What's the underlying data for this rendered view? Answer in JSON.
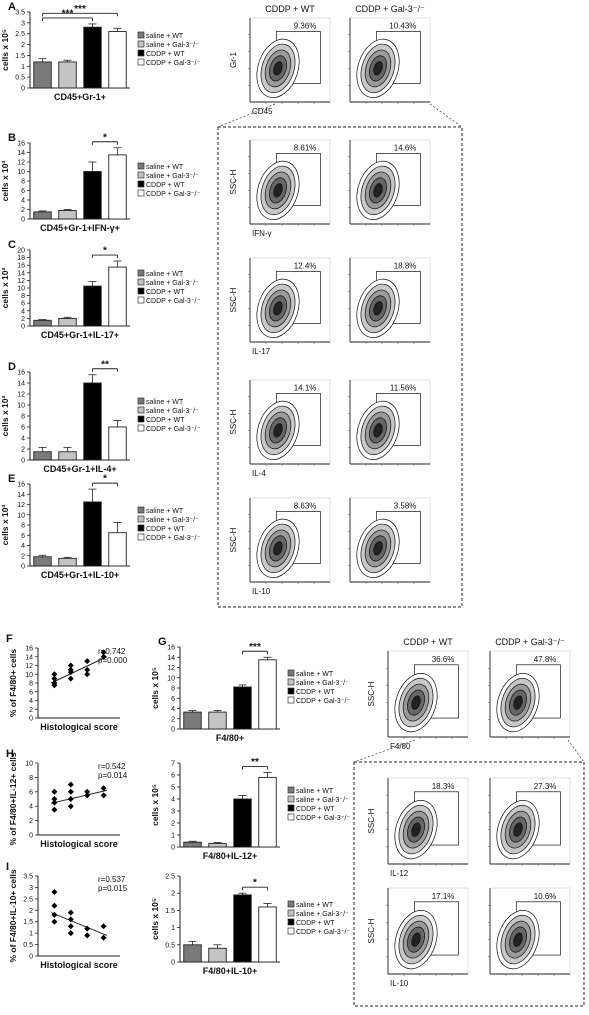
{
  "legend_labels": [
    "saline + WT",
    "saline + Gal-3⁻/⁻",
    "CDDP + WT",
    "CDDP + Gal-3⁻/⁻"
  ],
  "legend_colors": [
    "#7a7a7a",
    "#c4c4c4",
    "#000000",
    "#ffffff"
  ],
  "bar_panels": [
    {
      "letter": "A",
      "xlabel": "CD45+Gr-1+",
      "ylabel": "cells x 10⁵",
      "yticks": [
        "0",
        "0.5",
        "1",
        "1.5",
        "2",
        "2.5",
        "3",
        "3.5"
      ],
      "ylim": [
        0,
        3.5
      ],
      "values": [
        1.2,
        1.2,
        2.8,
        2.6
      ],
      "errors": [
        0.15,
        0.08,
        0.15,
        0.15
      ],
      "sig": [
        {
          "from": 0,
          "to": 2,
          "label": "***"
        },
        {
          "from": 0,
          "to": 3,
          "label": "***"
        }
      ]
    },
    {
      "letter": "B",
      "xlabel": "CD45+Gr-1+IFN-γ+",
      "ylabel": "cells x 10³",
      "yticks": [
        "0",
        "2",
        "4",
        "6",
        "8",
        "10",
        "12",
        "14",
        "16"
      ],
      "ylim": [
        0,
        16
      ],
      "values": [
        1.5,
        1.8,
        10,
        13.5
      ],
      "errors": [
        0.2,
        0.2,
        2,
        1.5
      ],
      "sig": [
        {
          "from": 2,
          "to": 3,
          "label": "*"
        }
      ]
    },
    {
      "letter": "C",
      "xlabel": "CD45+Gr-1+IL-17+",
      "ylabel": "cells x 10³",
      "yticks": [
        "0",
        "2",
        "4",
        "6",
        "8",
        "10",
        "12",
        "14",
        "16",
        "18",
        "20"
      ],
      "ylim": [
        0,
        20
      ],
      "values": [
        1.5,
        2,
        10.5,
        15.5
      ],
      "errors": [
        0.2,
        0.3,
        1.2,
        1.6
      ],
      "sig": [
        {
          "from": 2,
          "to": 3,
          "label": "*"
        }
      ]
    },
    {
      "letter": "D",
      "xlabel": "CD45+Gr-1+IL-4+",
      "ylabel": "cells x 10³",
      "yticks": [
        "0",
        "2",
        "4",
        "6",
        "8",
        "10",
        "12",
        "14",
        "16"
      ],
      "ylim": [
        0,
        16
      ],
      "values": [
        1.5,
        1.5,
        14,
        6
      ],
      "errors": [
        0.8,
        0.8,
        1.5,
        1.2
      ],
      "sig": [
        {
          "from": 2,
          "to": 3,
          "label": "**"
        }
      ]
    },
    {
      "letter": "E",
      "xlabel": "CD45+Gr-1+IL-10+",
      "ylabel": "cells x 10³",
      "yticks": [
        "0",
        "2",
        "4",
        "6",
        "8",
        "10",
        "12",
        "14",
        "16"
      ],
      "ylim": [
        0,
        16
      ],
      "values": [
        1.8,
        1.5,
        12.5,
        6.5
      ],
      "errors": [
        0.3,
        0.2,
        2.5,
        2
      ],
      "sig": [
        {
          "from": 2,
          "to": 3,
          "label": "*"
        }
      ]
    },
    {
      "letter": "G",
      "xlabel": "F4/80+",
      "ylabel": "cells x 10⁵",
      "yticks": [
        "0",
        "2",
        "4",
        "6",
        "8",
        "10",
        "12",
        "14",
        "16"
      ],
      "ylim": [
        0,
        16
      ],
      "values": [
        3.3,
        3.3,
        8.2,
        13.5
      ],
      "errors": [
        0.3,
        0.3,
        0.4,
        0.5
      ],
      "sig": [
        {
          "from": 2,
          "to": 3,
          "label": "***"
        }
      ]
    },
    {
      "letter": "",
      "xlabel": "F4/80+IL-12+",
      "ylabel": "cells x 10⁵",
      "yticks": [
        "0",
        "1",
        "2",
        "3",
        "4",
        "5",
        "6",
        "7"
      ],
      "ylim": [
        0,
        7
      ],
      "values": [
        0.4,
        0.3,
        4,
        5.8
      ],
      "errors": [
        0.08,
        0.08,
        0.3,
        0.4
      ],
      "sig": [
        {
          "from": 2,
          "to": 3,
          "label": "**"
        }
      ]
    },
    {
      "letter": "",
      "xlabel": "F4/80+IL-10+",
      "ylabel": "cells x 10⁵",
      "yticks": [
        "0",
        "0.5",
        "1",
        "1.5",
        "2",
        "2.5"
      ],
      "ylim": [
        0,
        2.5
      ],
      "values": [
        0.5,
        0.4,
        1.95,
        1.6
      ],
      "errors": [
        0.1,
        0.1,
        0.05,
        0.1
      ],
      "sig": [
        {
          "from": 2,
          "to": 3,
          "label": "*"
        }
      ]
    }
  ],
  "scatter_panels": [
    {
      "letter": "F",
      "ylabel": "% of F4/80+ cells",
      "xlabel": "Histological score",
      "yticks": [
        "0",
        "2",
        "4",
        "6",
        "8",
        "10",
        "12",
        "14",
        "16"
      ],
      "ylim": [
        0,
        16
      ],
      "r": "r=0.742",
      "p": "p=0.000",
      "points": [
        [
          1,
          7.5
        ],
        [
          1,
          9
        ],
        [
          1,
          10
        ],
        [
          1,
          8
        ],
        [
          2,
          10.5
        ],
        [
          2,
          12
        ],
        [
          2,
          11
        ],
        [
          2,
          9
        ],
        [
          3,
          11
        ],
        [
          3,
          13
        ],
        [
          3,
          10
        ],
        [
          4,
          14
        ],
        [
          4,
          15
        ]
      ],
      "fit": [
        [
          0.8,
          8
        ],
        [
          4.2,
          14
        ]
      ]
    },
    {
      "letter": "H",
      "ylabel": "% of F4/80+IL-12+ cells",
      "xlabel": "Histological score",
      "yticks": [
        "0",
        "2",
        "4",
        "6",
        "8",
        "10"
      ],
      "ylim": [
        0,
        10
      ],
      "r": "r=0.542",
      "p": "p=0.014",
      "points": [
        [
          1,
          4.5
        ],
        [
          1,
          3.5
        ],
        [
          1,
          5
        ],
        [
          1,
          6
        ],
        [
          2,
          5
        ],
        [
          2,
          4
        ],
        [
          2,
          6
        ],
        [
          2,
          7
        ],
        [
          3,
          5.5
        ],
        [
          3,
          6
        ],
        [
          4,
          5.5
        ],
        [
          4,
          6.5
        ]
      ],
      "fit": [
        [
          0.8,
          4.4
        ],
        [
          4.2,
          6.2
        ]
      ]
    },
    {
      "letter": "I",
      "ylabel": "% of F4/80+IL-10+ cells",
      "xlabel": "Histological score",
      "yticks": [
        "0",
        "0.5",
        "1",
        "1.5",
        "2",
        "2.5",
        "3",
        "3.5"
      ],
      "ylim": [
        0,
        3.5
      ],
      "r": "r=0.537",
      "p": "p=0.015",
      "points": [
        [
          1,
          2.8
        ],
        [
          1,
          2.2
        ],
        [
          1,
          1.5
        ],
        [
          1,
          1.8
        ],
        [
          2,
          1.6
        ],
        [
          2,
          1.3
        ],
        [
          2,
          1
        ],
        [
          2,
          1.9
        ],
        [
          3,
          1.2
        ],
        [
          3,
          0.9
        ],
        [
          4,
          1.3
        ],
        [
          4,
          0.8
        ]
      ],
      "fit": [
        [
          0.8,
          1.9
        ],
        [
          4.2,
          0.9
        ]
      ]
    }
  ],
  "flow_panels": [
    {
      "title": "CDDP + WT",
      "pct": "9.36%",
      "ylabel": "Gr-1",
      "xlabel": "CD45"
    },
    {
      "title": "CDDP + Gal-3⁻/⁻",
      "pct": "10.43%",
      "ylabel": "",
      "xlabel": ""
    },
    {
      "title": "",
      "pct": "8.61%",
      "ylabel": "SSC-H",
      "xlabel": "IFN-γ"
    },
    {
      "title": "",
      "pct": "14.6%",
      "ylabel": "",
      "xlabel": ""
    },
    {
      "title": "",
      "pct": "12.4%",
      "ylabel": "SSC-H",
      "xlabel": "IL-17"
    },
    {
      "title": "",
      "pct": "18.8%",
      "ylabel": "",
      "xlabel": ""
    },
    {
      "title": "",
      "pct": "14.1%",
      "ylabel": "SSC-H",
      "xlabel": "IL-4"
    },
    {
      "title": "",
      "pct": "11.56%",
      "ylabel": "",
      "xlabel": ""
    },
    {
      "title": "",
      "pct": "8.63%",
      "ylabel": "SSC-H",
      "xlabel": "IL-10"
    },
    {
      "title": "",
      "pct": "3.58%",
      "ylabel": "",
      "xlabel": ""
    },
    {
      "title": "CDDP + WT",
      "pct": "36.6%",
      "ylabel": "SSC-H",
      "xlabel": "F4/80"
    },
    {
      "title": "CDDP + Gal-3⁻/⁻",
      "pct": "47.8%",
      "ylabel": "",
      "xlabel": ""
    },
    {
      "title": "",
      "pct": "18.3%",
      "ylabel": "SSC-H",
      "xlabel": "IL-12"
    },
    {
      "title": "",
      "pct": "27.3%",
      "ylabel": "",
      "xlabel": ""
    },
    {
      "title": "",
      "pct": "17.1%",
      "ylabel": "SSC-H",
      "xlabel": "IL-10"
    },
    {
      "title": "",
      "pct": "10.6%",
      "ylabel": "",
      "xlabel": ""
    }
  ],
  "chart_data": [
    {
      "type": "bar",
      "panel": "A",
      "categories": [
        "saline + WT",
        "saline + Gal-3⁻/⁻",
        "CDDP + WT",
        "CDDP + Gal-3⁻/⁻"
      ],
      "values": [
        1.2,
        1.2,
        2.8,
        2.6
      ],
      "xlabel": "CD45+Gr-1+",
      "ylabel": "cells x 10⁵",
      "ylim": [
        0,
        3.5
      ]
    },
    {
      "type": "bar",
      "panel": "B",
      "categories": [
        "saline + WT",
        "saline + Gal-3⁻/⁻",
        "CDDP + WT",
        "CDDP + Gal-3⁻/⁻"
      ],
      "values": [
        1.5,
        1.8,
        10,
        13.5
      ],
      "xlabel": "CD45+Gr-1+IFN-γ+",
      "ylabel": "cells x 10³",
      "ylim": [
        0,
        16
      ]
    },
    {
      "type": "bar",
      "panel": "C",
      "categories": [
        "saline + WT",
        "saline + Gal-3⁻/⁻",
        "CDDP + WT",
        "CDDP + Gal-3⁻/⁻"
      ],
      "values": [
        1.5,
        2,
        10.5,
        15.5
      ],
      "xlabel": "CD45+Gr-1+IL-17+",
      "ylabel": "cells x 10³",
      "ylim": [
        0,
        20
      ]
    },
    {
      "type": "bar",
      "panel": "D",
      "categories": [
        "saline + WT",
        "saline + Gal-3⁻/⁻",
        "CDDP + WT",
        "CDDP + Gal-3⁻/⁻"
      ],
      "values": [
        1.5,
        1.5,
        14,
        6
      ],
      "xlabel": "CD45+Gr-1+IL-4+",
      "ylabel": "cells x 10³",
      "ylim": [
        0,
        16
      ]
    },
    {
      "type": "bar",
      "panel": "E",
      "categories": [
        "saline + WT",
        "saline + Gal-3⁻/⁻",
        "CDDP + WT",
        "CDDP + Gal-3⁻/⁻"
      ],
      "values": [
        1.8,
        1.5,
        12.5,
        6.5
      ],
      "xlabel": "CD45+Gr-1+IL-10+",
      "ylabel": "cells x 10³",
      "ylim": [
        0,
        16
      ]
    },
    {
      "type": "scatter",
      "panel": "F",
      "xlabel": "Histological score",
      "ylabel": "% of F4/80+ cells",
      "ylim": [
        0,
        16
      ]
    },
    {
      "type": "bar",
      "panel": "G",
      "categories": [
        "saline + WT",
        "saline + Gal-3⁻/⁻",
        "CDDP + WT",
        "CDDP + Gal-3⁻/⁻"
      ],
      "values": [
        3.3,
        3.3,
        8.2,
        13.5
      ],
      "xlabel": "F4/80+",
      "ylabel": "cells x 10⁵",
      "ylim": [
        0,
        16
      ]
    },
    {
      "type": "scatter",
      "panel": "H",
      "xlabel": "Histological score",
      "ylabel": "% of F4/80+IL-12+ cells",
      "ylim": [
        0,
        10
      ]
    },
    {
      "type": "bar",
      "panel": "H-right",
      "categories": [
        "saline + WT",
        "saline + Gal-3⁻/⁻",
        "CDDP + WT",
        "CDDP + Gal-3⁻/⁻"
      ],
      "values": [
        0.4,
        0.3,
        4,
        5.8
      ],
      "xlabel": "F4/80+IL-12+",
      "ylabel": "cells x 10⁵",
      "ylim": [
        0,
        7
      ]
    },
    {
      "type": "scatter",
      "panel": "I",
      "xlabel": "Histological score",
      "ylabel": "% of F4/80+IL-10+ cells",
      "ylim": [
        0,
        3.5
      ]
    },
    {
      "type": "bar",
      "panel": "I-right",
      "categories": [
        "saline + WT",
        "saline + Gal-3⁻/⁻",
        "CDDP + WT",
        "CDDP + Gal-3⁻/⁻"
      ],
      "values": [
        0.5,
        0.4,
        1.95,
        1.6
      ],
      "xlabel": "F4/80+IL-10+",
      "ylabel": "cells x 10⁵",
      "ylim": [
        0,
        2.5
      ]
    }
  ]
}
